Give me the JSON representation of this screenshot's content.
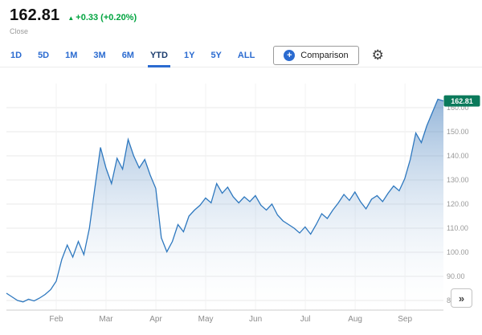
{
  "header": {
    "price": "162.81",
    "change": "+0.33 (+0.20%)",
    "close_label": "Close"
  },
  "icons": {
    "up_arrow": "▲",
    "plus": "+",
    "gear": "⚙",
    "expand": "»"
  },
  "toolbar": {
    "tabs": [
      {
        "label": "1D",
        "active": false
      },
      {
        "label": "5D",
        "active": false
      },
      {
        "label": "1M",
        "active": false
      },
      {
        "label": "3M",
        "active": false
      },
      {
        "label": "6M",
        "active": false
      },
      {
        "label": "YTD",
        "active": true
      },
      {
        "label": "1Y",
        "active": false
      },
      {
        "label": "5Y",
        "active": false
      },
      {
        "label": "ALL",
        "active": false
      }
    ],
    "comparison_label": "Comparison"
  },
  "colors": {
    "accent_blue": "#2b6bd0",
    "line_blue": "#2e78bf",
    "fill_top": "rgba(45,110,180,0.50)",
    "fill_bottom": "rgba(255,255,255,0.06)",
    "badge_green": "#0b7a5b",
    "change_green": "#00a43f",
    "grid_gray": "#e8e8e8",
    "vgrid_gray": "#f2f2f2",
    "axis_gray": "#cccccc"
  },
  "chart_data": {
    "type": "area",
    "period": "YTD",
    "ylim": [
      76,
      170
    ],
    "y_tick_labels": [
      "160.00",
      "150.00",
      "140.00",
      "130.00",
      "120.00",
      "110.00",
      "100.00",
      "90.00",
      "80.00"
    ],
    "x_ticks": [
      {
        "label": "Feb",
        "f": 0.114
      },
      {
        "label": "Mar",
        "f": 0.228
      },
      {
        "label": "Apr",
        "f": 0.342
      },
      {
        "label": "May",
        "f": 0.456
      },
      {
        "label": "Jun",
        "f": 0.57
      },
      {
        "label": "Jul",
        "f": 0.684
      },
      {
        "label": "Aug",
        "f": 0.798
      },
      {
        "label": "Sep",
        "f": 0.912
      }
    ],
    "last_price": 162.81,
    "last_price_label": "162.81",
    "values": [
      83.0,
      81.5,
      80.0,
      79.4,
      80.5,
      79.8,
      81.0,
      82.5,
      84.5,
      88.0,
      97.0,
      103.0,
      98.0,
      104.5,
      99.0,
      110.0,
      127.0,
      143.5,
      135.0,
      128.5,
      139.0,
      134.5,
      146.8,
      140.0,
      135.0,
      138.5,
      132.0,
      126.5,
      106.0,
      100.2,
      104.5,
      111.5,
      108.5,
      115.0,
      117.5,
      119.5,
      122.5,
      120.5,
      128.5,
      124.5,
      127.0,
      123.0,
      120.5,
      123.0,
      121.0,
      123.5,
      119.5,
      117.5,
      120.0,
      115.5,
      113.0,
      111.5,
      110.0,
      108.0,
      110.5,
      107.5,
      111.5,
      116.0,
      114.0,
      117.5,
      120.5,
      124.0,
      121.5,
      125.0,
      121.0,
      118.0,
      122.0,
      123.5,
      121.0,
      124.5,
      127.5,
      125.5,
      130.5,
      138.5,
      149.5,
      145.5,
      152.5,
      158.0,
      163.5,
      162.81
    ]
  }
}
